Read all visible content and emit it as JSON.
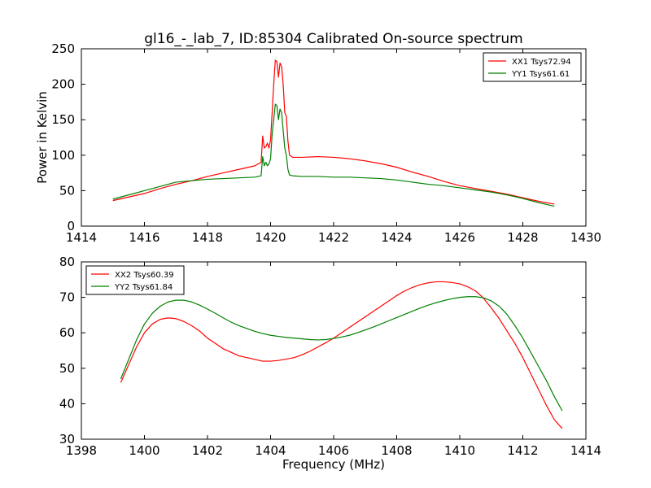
{
  "title": "gl16_-_lab_7, ID:85304 Calibrated On-source spectrum",
  "chart_data": [
    {
      "type": "line",
      "title": "",
      "xlabel": "",
      "ylabel": "Power in Kelvin",
      "xlim": [
        1414,
        1430
      ],
      "ylim": [
        0,
        250
      ],
      "xticks": [
        1414,
        1416,
        1418,
        1420,
        1422,
        1424,
        1426,
        1428,
        1430
      ],
      "yticks": [
        0,
        50,
        100,
        150,
        200,
        250
      ],
      "legend": "top-right",
      "grid": false,
      "series": [
        {
          "name": "XX1 Tsys72.94",
          "color": "#ff0000",
          "points": [
            [
              1415.0,
              36
            ],
            [
              1415.5,
              41
            ],
            [
              1416.0,
              46
            ],
            [
              1416.5,
              53
            ],
            [
              1417.0,
              59
            ],
            [
              1417.5,
              64
            ],
            [
              1418.0,
              70
            ],
            [
              1418.5,
              75
            ],
            [
              1419.0,
              80
            ],
            [
              1419.5,
              85
            ],
            [
              1419.7,
              90
            ],
            [
              1419.75,
              127
            ],
            [
              1419.8,
              110
            ],
            [
              1419.85,
              112
            ],
            [
              1419.9,
              117
            ],
            [
              1419.95,
              110
            ],
            [
              1420.0,
              122
            ],
            [
              1420.05,
              160
            ],
            [
              1420.1,
              200
            ],
            [
              1420.15,
              234
            ],
            [
              1420.2,
              232
            ],
            [
              1420.25,
              210
            ],
            [
              1420.3,
              230
            ],
            [
              1420.35,
              225
            ],
            [
              1420.4,
              200
            ],
            [
              1420.45,
              160
            ],
            [
              1420.5,
              155
            ],
            [
              1420.55,
              120
            ],
            [
              1420.6,
              100
            ],
            [
              1420.7,
              97
            ],
            [
              1421.0,
              97
            ],
            [
              1421.5,
              98
            ],
            [
              1422.0,
              97
            ],
            [
              1422.5,
              95
            ],
            [
              1423.0,
              92
            ],
            [
              1423.5,
              88
            ],
            [
              1424.0,
              83
            ],
            [
              1424.5,
              76
            ],
            [
              1425.0,
              70
            ],
            [
              1425.5,
              63
            ],
            [
              1426.0,
              57
            ],
            [
              1426.5,
              53
            ],
            [
              1427.0,
              49
            ],
            [
              1427.5,
              45
            ],
            [
              1428.0,
              40
            ],
            [
              1428.5,
              35
            ],
            [
              1429.0,
              31
            ]
          ]
        },
        {
          "name": "YY1 Tsys61.61",
          "color": "#008000",
          "points": [
            [
              1415.0,
              38
            ],
            [
              1415.5,
              44
            ],
            [
              1416.0,
              50
            ],
            [
              1416.5,
              56
            ],
            [
              1417.0,
              62
            ],
            [
              1417.5,
              64
            ],
            [
              1418.0,
              66
            ],
            [
              1418.5,
              67
            ],
            [
              1419.0,
              68
            ],
            [
              1419.5,
              69
            ],
            [
              1419.7,
              71
            ],
            [
              1419.75,
              98
            ],
            [
              1419.8,
              85
            ],
            [
              1419.85,
              90
            ],
            [
              1419.9,
              85
            ],
            [
              1419.95,
              88
            ],
            [
              1420.0,
              95
            ],
            [
              1420.05,
              130
            ],
            [
              1420.1,
              150
            ],
            [
              1420.15,
              172
            ],
            [
              1420.2,
              170
            ],
            [
              1420.25,
              150
            ],
            [
              1420.3,
              165
            ],
            [
              1420.35,
              160
            ],
            [
              1420.4,
              135
            ],
            [
              1420.45,
              110
            ],
            [
              1420.5,
              100
            ],
            [
              1420.55,
              80
            ],
            [
              1420.6,
              72
            ],
            [
              1420.7,
              71
            ],
            [
              1421.0,
              70
            ],
            [
              1421.5,
              70
            ],
            [
              1422.0,
              69
            ],
            [
              1422.5,
              69
            ],
            [
              1423.0,
              68
            ],
            [
              1423.5,
              67
            ],
            [
              1424.0,
              65
            ],
            [
              1424.5,
              62
            ],
            [
              1425.0,
              59
            ],
            [
              1425.5,
              57
            ],
            [
              1426.0,
              54
            ],
            [
              1426.5,
              51
            ],
            [
              1427.0,
              48
            ],
            [
              1427.5,
              44
            ],
            [
              1428.0,
              39
            ],
            [
              1428.5,
              33
            ],
            [
              1429.0,
              28
            ]
          ]
        }
      ]
    },
    {
      "type": "line",
      "title": "",
      "xlabel": "Frequency (MHz)",
      "ylabel": "",
      "xlim": [
        1398,
        1414
      ],
      "ylim": [
        30,
        80
      ],
      "xticks": [
        1398,
        1400,
        1402,
        1404,
        1406,
        1408,
        1410,
        1412,
        1414
      ],
      "yticks": [
        30,
        40,
        50,
        60,
        70,
        80
      ],
      "legend": "top-left",
      "grid": false,
      "series": [
        {
          "name": "XX2 Tsys60.39",
          "color": "#ff0000",
          "points": [
            [
              1399.25,
              46
            ],
            [
              1399.5,
              51
            ],
            [
              1399.75,
              56
            ],
            [
              1400.0,
              60
            ],
            [
              1400.25,
              62.5
            ],
            [
              1400.5,
              63.8
            ],
            [
              1400.75,
              64.2
            ],
            [
              1401.0,
              64
            ],
            [
              1401.25,
              63.2
            ],
            [
              1401.5,
              62
            ],
            [
              1401.75,
              60.5
            ],
            [
              1402.0,
              58.5
            ],
            [
              1402.25,
              57
            ],
            [
              1402.5,
              55.5
            ],
            [
              1402.75,
              54.5
            ],
            [
              1403.0,
              53.5
            ],
            [
              1403.25,
              53
            ],
            [
              1403.5,
              52.5
            ],
            [
              1403.75,
              52
            ],
            [
              1404.0,
              52
            ],
            [
              1404.25,
              52.2
            ],
            [
              1404.5,
              52.6
            ],
            [
              1404.75,
              53
            ],
            [
              1405.0,
              53.8
            ],
            [
              1405.25,
              54.8
            ],
            [
              1405.5,
              56
            ],
            [
              1405.75,
              57.2
            ],
            [
              1406.0,
              58.5
            ],
            [
              1406.25,
              60
            ],
            [
              1406.5,
              61.5
            ],
            [
              1406.75,
              63
            ],
            [
              1407.0,
              64.5
            ],
            [
              1407.25,
              66
            ],
            [
              1407.5,
              67.5
            ],
            [
              1407.75,
              69
            ],
            [
              1408.0,
              70.5
            ],
            [
              1408.25,
              71.8
            ],
            [
              1408.5,
              72.8
            ],
            [
              1408.75,
              73.6
            ],
            [
              1409.0,
              74.1
            ],
            [
              1409.25,
              74.4
            ],
            [
              1409.5,
              74.4
            ],
            [
              1409.75,
              74.2
            ],
            [
              1410.0,
              73.8
            ],
            [
              1410.25,
              73
            ],
            [
              1410.5,
              71.8
            ],
            [
              1410.75,
              69.8
            ],
            [
              1411.0,
              67
            ],
            [
              1411.25,
              64
            ],
            [
              1411.5,
              60.5
            ],
            [
              1411.75,
              57
            ],
            [
              1412.0,
              53
            ],
            [
              1412.25,
              48.5
            ],
            [
              1412.5,
              44
            ],
            [
              1412.75,
              39.5
            ],
            [
              1413.0,
              35.5
            ],
            [
              1413.25,
              33
            ]
          ]
        },
        {
          "name": "YY2 Tsys61.84",
          "color": "#008000",
          "points": [
            [
              1399.25,
              47
            ],
            [
              1399.5,
              52.5
            ],
            [
              1399.75,
              58
            ],
            [
              1400.0,
              62.5
            ],
            [
              1400.25,
              65.5
            ],
            [
              1400.5,
              67.5
            ],
            [
              1400.75,
              68.7
            ],
            [
              1401.0,
              69.2
            ],
            [
              1401.25,
              69.2
            ],
            [
              1401.5,
              68.7
            ],
            [
              1401.75,
              67.8
            ],
            [
              1402.0,
              66.7
            ],
            [
              1402.25,
              65.5
            ],
            [
              1402.5,
              64.2
            ],
            [
              1402.75,
              63
            ],
            [
              1403.0,
              62
            ],
            [
              1403.25,
              61.2
            ],
            [
              1403.5,
              60.4
            ],
            [
              1403.75,
              59.8
            ],
            [
              1404.0,
              59.3
            ],
            [
              1404.25,
              59
            ],
            [
              1404.5,
              58.7
            ],
            [
              1404.75,
              58.5
            ],
            [
              1405.0,
              58.3
            ],
            [
              1405.25,
              58.1
            ],
            [
              1405.5,
              58
            ],
            [
              1405.75,
              58.1
            ],
            [
              1406.0,
              58.4
            ],
            [
              1406.25,
              58.8
            ],
            [
              1406.5,
              59.3
            ],
            [
              1406.75,
              60
            ],
            [
              1407.0,
              60.8
            ],
            [
              1407.25,
              61.6
            ],
            [
              1407.5,
              62.5
            ],
            [
              1407.75,
              63.4
            ],
            [
              1408.0,
              64.3
            ],
            [
              1408.25,
              65.2
            ],
            [
              1408.5,
              66.1
            ],
            [
              1408.75,
              67
            ],
            [
              1409.0,
              67.8
            ],
            [
              1409.25,
              68.5
            ],
            [
              1409.5,
              69.1
            ],
            [
              1409.75,
              69.6
            ],
            [
              1410.0,
              70
            ],
            [
              1410.25,
              70.2
            ],
            [
              1410.5,
              70.2
            ],
            [
              1410.75,
              69.9
            ],
            [
              1411.0,
              69
            ],
            [
              1411.25,
              67.5
            ],
            [
              1411.5,
              65.2
            ],
            [
              1411.75,
              62
            ],
            [
              1412.0,
              58.5
            ],
            [
              1412.25,
              54.5
            ],
            [
              1412.5,
              50.5
            ],
            [
              1412.75,
              46.5
            ],
            [
              1413.0,
              42
            ],
            [
              1413.25,
              38
            ]
          ]
        }
      ]
    }
  ]
}
